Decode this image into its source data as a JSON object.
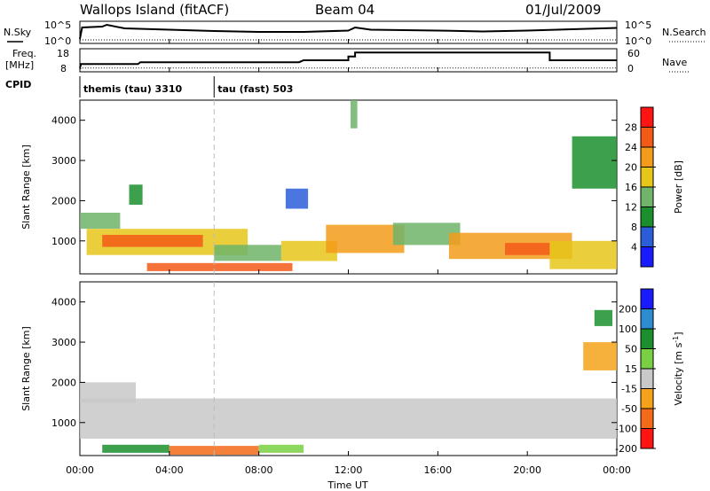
{
  "header": {
    "station": "Wallops Island (fitACF)",
    "beam": "Beam 04",
    "date": "01/Jul/2009"
  },
  "noise_panel": {
    "left_label": "N.Sky",
    "right_label": "N.Search",
    "left_ticks": [
      "10^5",
      "10^0"
    ],
    "right_ticks": [
      "10^5",
      "10^0"
    ]
  },
  "freq_panel": {
    "left_label_1": "Freq.",
    "left_label_2": "[MHz]",
    "right_label": "Nave",
    "left_ticks": [
      "18",
      "8"
    ],
    "right_ticks": [
      "60",
      "0"
    ],
    "freq_series": [
      [
        0.0,
        8.0
      ],
      [
        0.05,
        10.0
      ],
      [
        2.6,
        10.0
      ],
      [
        2.7,
        11.0
      ],
      [
        6.0,
        11.0
      ],
      [
        9.8,
        11.0
      ],
      [
        10.0,
        12.0
      ],
      [
        12.0,
        12.0
      ],
      [
        12.0,
        14.0
      ],
      [
        12.3,
        14.0
      ],
      [
        12.3,
        16.0
      ],
      [
        21.0,
        16.0
      ],
      [
        21.0,
        12.0
      ],
      [
        24.0,
        12.0
      ]
    ],
    "nave_series": [
      [
        0.0,
        0.0
      ],
      [
        0.05,
        10.0
      ],
      [
        24.0,
        10.0
      ]
    ]
  },
  "cpid": {
    "label": "CPID",
    "segments": [
      {
        "start_hour": 0,
        "end_hour": 6,
        "text": "themis (tau) 3310"
      },
      {
        "start_hour": 6,
        "end_hour": 24,
        "text": "tau (fast) 503"
      }
    ]
  },
  "chart_data": [
    {
      "type": "heatmap",
      "title": "",
      "xlabel": "",
      "ylabel": "Slant Range [km]",
      "xlim": [
        0,
        24
      ],
      "ylim": [
        180,
        4500
      ],
      "yticks": [
        "1000",
        "2000",
        "3000",
        "4000"
      ],
      "colorbar": {
        "label": "Power [dB]",
        "range": [
          0,
          32
        ],
        "ticks": [
          "4",
          "8",
          "12",
          "16",
          "20",
          "24",
          "28"
        ],
        "colors": [
          "#1a1aff",
          "#2b5dd9",
          "#1b8f2e",
          "#6fb46a",
          "#e6c619",
          "#f39b1a",
          "#f35a18",
          "#ff1414"
        ]
      },
      "bands": [
        {
          "x0": 0.0,
          "x1": 1.8,
          "y0": 1300,
          "y1": 1700,
          "value": 14
        },
        {
          "x0": 0.3,
          "x1": 7.5,
          "y0": 650,
          "y1": 1300,
          "value": 18
        },
        {
          "x0": 1.0,
          "x1": 5.5,
          "y0": 850,
          "y1": 1150,
          "value": 24
        },
        {
          "x0": 3.0,
          "x1": 9.5,
          "y0": 250,
          "y1": 450,
          "value": 26
        },
        {
          "x0": 6.0,
          "x1": 9.0,
          "y0": 500,
          "y1": 900,
          "value": 12
        },
        {
          "x0": 9.0,
          "x1": 11.5,
          "y0": 500,
          "y1": 1000,
          "value": 16
        },
        {
          "x0": 11.0,
          "x1": 14.5,
          "y0": 700,
          "y1": 1400,
          "value": 22
        },
        {
          "x0": 14.0,
          "x1": 17.0,
          "y0": 900,
          "y1": 1450,
          "value": 14
        },
        {
          "x0": 16.5,
          "x1": 22.0,
          "y0": 550,
          "y1": 1200,
          "value": 20
        },
        {
          "x0": 19.0,
          "x1": 21.0,
          "y0": 650,
          "y1": 950,
          "value": 26
        },
        {
          "x0": 21.0,
          "x1": 24.0,
          "y0": 300,
          "y1": 1000,
          "value": 18
        },
        {
          "x0": 22.0,
          "x1": 24.0,
          "y0": 2300,
          "y1": 3600,
          "value": 8
        },
        {
          "x0": 9.2,
          "x1": 10.2,
          "y0": 1800,
          "y1": 2300,
          "value": 6
        },
        {
          "x0": 12.1,
          "x1": 12.4,
          "y0": 3800,
          "y1": 4500,
          "value": 12
        },
        {
          "x0": 2.2,
          "x1": 2.8,
          "y0": 1900,
          "y1": 2400,
          "value": 8
        }
      ]
    },
    {
      "type": "heatmap",
      "title": "",
      "xlabel": "Time UT",
      "ylabel": "Slant Range [km]",
      "xlim": [
        0,
        24
      ],
      "ylim": [
        180,
        4500
      ],
      "yticks": [
        "1000",
        "2000",
        "3000",
        "4000"
      ],
      "xticks": [
        "00:00",
        "04:00",
        "08:00",
        "12:00",
        "16:00",
        "20:00",
        "00:00"
      ],
      "colorbar": {
        "label": "Velocity [m s^-1]",
        "range": [
          -250,
          250
        ],
        "ticks": [
          "200",
          "100",
          "50",
          "15",
          "-15",
          "-50",
          "-100",
          "-200"
        ],
        "colors": [
          "#1a1aff",
          "#2e8bd0",
          "#1b8f2e",
          "#7ad043",
          "#c8c8c8",
          "#f5a21a",
          "#f36a18",
          "#ff1414"
        ]
      },
      "bands": [
        {
          "x0": 0.0,
          "x1": 24.0,
          "y0": 600,
          "y1": 1600,
          "value": 0
        },
        {
          "x0": 0.0,
          "x1": 2.5,
          "y0": 1500,
          "y1": 2000,
          "value": 0
        },
        {
          "x0": 1.0,
          "x1": 4.0,
          "y0": 250,
          "y1": 450,
          "value": 40
        },
        {
          "x0": 4.0,
          "x1": 8.0,
          "y0": 200,
          "y1": 420,
          "value": -60
        },
        {
          "x0": 8.0,
          "x1": 10.0,
          "y0": 250,
          "y1": 450,
          "value": 20
        },
        {
          "x0": 22.5,
          "x1": 24.0,
          "y0": 2300,
          "y1": 3000,
          "value": -30
        },
        {
          "x0": 23.0,
          "x1": 23.8,
          "y0": 3400,
          "y1": 3800,
          "value": 60
        }
      ]
    }
  ],
  "noise_series": {
    "sky": [
      [
        0.0,
        1
      ],
      [
        0.1,
        3.6
      ],
      [
        1.0,
        3.8
      ],
      [
        1.2,
        4.2
      ],
      [
        2.0,
        3.4
      ],
      [
        4.0,
        3.1
      ],
      [
        6.0,
        2.8
      ],
      [
        8.0,
        2.6
      ],
      [
        10.0,
        2.6
      ],
      [
        12.0,
        2.9
      ],
      [
        12.3,
        3.6
      ],
      [
        13.0,
        3.1
      ],
      [
        16.0,
        2.9
      ],
      [
        18.0,
        2.7
      ],
      [
        20.0,
        2.9
      ],
      [
        22.0,
        3.2
      ],
      [
        24.0,
        3.5
      ]
    ],
    "search": [
      [
        0.0,
        0.8
      ],
      [
        24.0,
        0.8
      ]
    ]
  },
  "colors": {
    "axis": "#000000",
    "dashed_marker": "#bbbbbb"
  }
}
